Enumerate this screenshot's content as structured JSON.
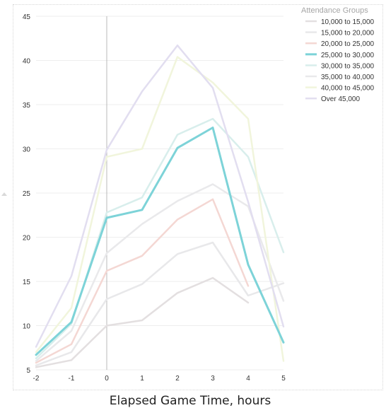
{
  "chart_data": {
    "type": "line",
    "xlabel": "Elapsed Game Time, hours",
    "ylabel": "",
    "x": [
      -2,
      -1,
      0,
      1,
      2,
      3,
      4,
      5
    ],
    "xlim": [
      -2,
      5
    ],
    "ylim": [
      5,
      45
    ],
    "xticks": [
      "-2",
      "-1",
      "0",
      "1",
      "2",
      "3",
      "4",
      "5"
    ],
    "yticks": [
      "5",
      "10",
      "15",
      "20",
      "25",
      "30",
      "35",
      "40",
      "45"
    ],
    "grid": true,
    "reference_line_x": 0,
    "legend": {
      "title": "Attendance Groups",
      "position": "top-right"
    },
    "highlighted_series": "25,000 to 30,000",
    "series": [
      {
        "name": "10,000 to 15,000",
        "color": "#e3dfe0",
        "values": [
          5.3,
          6.1,
          10.0,
          10.6,
          13.7,
          15.4,
          12.6,
          null
        ]
      },
      {
        "name": "15,000 to 20,000",
        "color": "#e8e8ea",
        "values": [
          5.5,
          7.0,
          13.0,
          14.7,
          18.1,
          19.4,
          13.4,
          14.8
        ]
      },
      {
        "name": "20,000 to 25,000",
        "color": "#f4d7d3",
        "values": [
          5.8,
          7.9,
          16.2,
          17.9,
          22.0,
          24.3,
          14.5,
          null
        ]
      },
      {
        "name": "25,000 to 30,000",
        "color": "#7dd3d8",
        "values": [
          6.7,
          10.4,
          22.2,
          23.1,
          30.1,
          32.4,
          16.9,
          8.1
        ]
      },
      {
        "name": "30,000 to 35,000",
        "color": "#d8eeec",
        "values": [
          6.3,
          10.2,
          22.8,
          24.5,
          31.6,
          33.4,
          29.1,
          18.3
        ]
      },
      {
        "name": "35,000 to 40,000",
        "color": "#e9e9eb",
        "values": [
          6.0,
          9.4,
          18.2,
          21.5,
          24.1,
          26.0,
          23.5,
          12.8
        ]
      },
      {
        "name": "40,000 to 45,000",
        "color": "#f1f5dc",
        "values": [
          7.0,
          12.0,
          29.1,
          30.0,
          40.4,
          37.5,
          33.4,
          6.0
        ]
      },
      {
        "name": "Over 45,000",
        "color": "#e2def0",
        "values": [
          7.6,
          15.6,
          29.9,
          36.5,
          41.7,
          36.9,
          24.0,
          9.9
        ]
      }
    ]
  }
}
